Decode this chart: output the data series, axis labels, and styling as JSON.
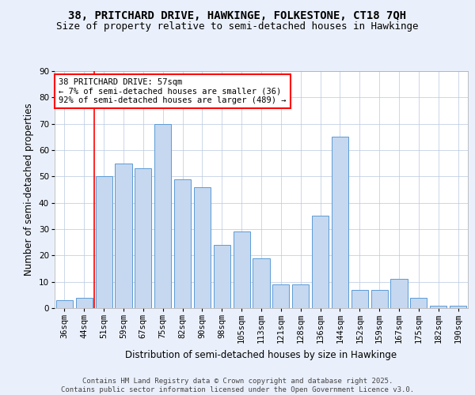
{
  "title1": "38, PRITCHARD DRIVE, HAWKINGE, FOLKESTONE, CT18 7QH",
  "title2": "Size of property relative to semi-detached houses in Hawkinge",
  "xlabel": "Distribution of semi-detached houses by size in Hawkinge",
  "ylabel": "Number of semi-detached properties",
  "categories": [
    "36sqm",
    "44sqm",
    "51sqm",
    "59sqm",
    "67sqm",
    "75sqm",
    "82sqm",
    "90sqm",
    "98sqm",
    "105sqm",
    "113sqm",
    "121sqm",
    "128sqm",
    "136sqm",
    "144sqm",
    "152sqm",
    "159sqm",
    "167sqm",
    "175sqm",
    "182sqm",
    "190sqm"
  ],
  "values": [
    3,
    4,
    50,
    55,
    53,
    70,
    49,
    46,
    24,
    29,
    19,
    9,
    9,
    35,
    65,
    7,
    7,
    11,
    4,
    1,
    1
  ],
  "bar_color": "#c5d8f0",
  "bar_edge_color": "#5b9bd5",
  "annotation_text": "38 PRITCHARD DRIVE: 57sqm\n← 7% of semi-detached houses are smaller (36)\n92% of semi-detached houses are larger (489) →",
  "annotation_box_color": "white",
  "annotation_box_edge_color": "red",
  "vline_color": "red",
  "vline_bar_index": 2,
  "ylim": [
    0,
    90
  ],
  "yticks": [
    0,
    10,
    20,
    30,
    40,
    50,
    60,
    70,
    80,
    90
  ],
  "background_color": "#eaf0fb",
  "plot_bg_color": "white",
  "footer_text": "Contains HM Land Registry data © Crown copyright and database right 2025.\nContains public sector information licensed under the Open Government Licence v3.0.",
  "title_fontsize": 10,
  "subtitle_fontsize": 9,
  "annotation_fontsize": 7.5,
  "axis_label_fontsize": 8.5,
  "tick_fontsize": 7.5,
  "footer_fontsize": 6.5
}
